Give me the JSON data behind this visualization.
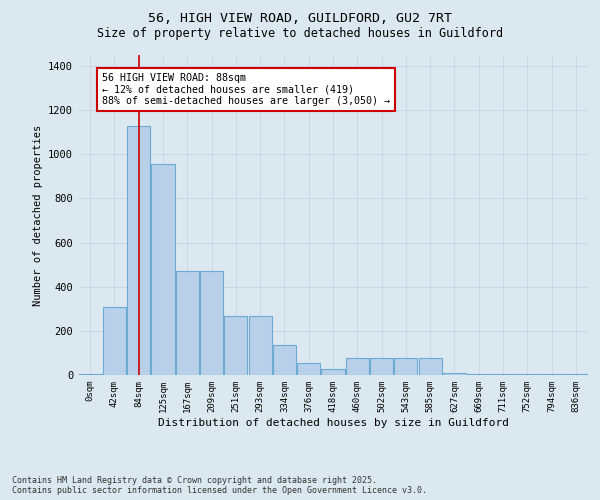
{
  "title_line1": "56, HIGH VIEW ROAD, GUILDFORD, GU2 7RT",
  "title_line2": "Size of property relative to detached houses in Guildford",
  "xlabel": "Distribution of detached houses by size in Guildford",
  "ylabel": "Number of detached properties",
  "categories": [
    "0sqm",
    "42sqm",
    "84sqm",
    "125sqm",
    "167sqm",
    "209sqm",
    "251sqm",
    "293sqm",
    "334sqm",
    "376sqm",
    "418sqm",
    "460sqm",
    "502sqm",
    "543sqm",
    "585sqm",
    "627sqm",
    "669sqm",
    "711sqm",
    "752sqm",
    "794sqm",
    "836sqm"
  ],
  "values": [
    5,
    310,
    1130,
    955,
    470,
    470,
    268,
    268,
    135,
    55,
    28,
    75,
    75,
    75,
    75,
    10,
    3,
    3,
    3,
    3,
    3
  ],
  "bar_color": "#b8d0e8",
  "bar_edge_color": "#6aaad4",
  "red_line_x": 2,
  "annotation_text": "56 HIGH VIEW ROAD: 88sqm\n← 12% of detached houses are smaller (419)\n88% of semi-detached houses are larger (3,050) →",
  "annotation_box_facecolor": "#ffffff",
  "annotation_box_edgecolor": "#cc0000",
  "grid_color": "#c8d8e8",
  "background_color": "#dce8f0",
  "plot_bg_color": "#dce8f0",
  "ylim": [
    0,
    1450
  ],
  "yticks": [
    0,
    200,
    400,
    600,
    800,
    1000,
    1200,
    1400
  ],
  "footer_line1": "Contains HM Land Registry data © Crown copyright and database right 2025.",
  "footer_line2": "Contains public sector information licensed under the Open Government Licence v3.0."
}
